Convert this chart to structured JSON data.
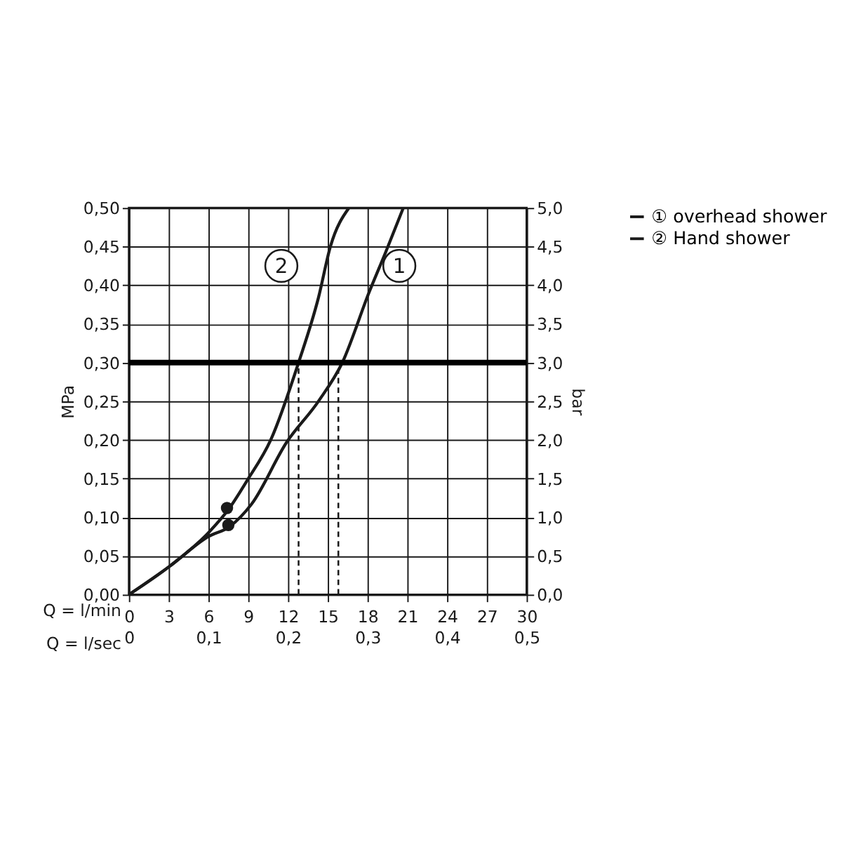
{
  "chart_data": {
    "type": "line",
    "xlabel": "Q = l/min",
    "ylabel": "MPa",
    "y2label": "bar",
    "x2label": "Q = l/sec",
    "xlim": [
      0,
      30
    ],
    "xticks": [
      0,
      3,
      6,
      9,
      12,
      15,
      18,
      21,
      24,
      27,
      30
    ],
    "ylim": [
      0,
      0.5
    ],
    "yticks": [
      {
        "value": 0,
        "label": "0,00"
      },
      {
        "value": 0.05,
        "label": "0,05"
      },
      {
        "value": 0.1,
        "label": "0,10"
      },
      {
        "value": 0.15,
        "label": "0,15"
      },
      {
        "value": 0.2,
        "label": "0,20"
      },
      {
        "value": 0.25,
        "label": "0,25"
      },
      {
        "value": 0.3,
        "label": "0,30"
      },
      {
        "value": 0.35,
        "label": "0,35"
      },
      {
        "value": 0.4,
        "label": "0,40"
      },
      {
        "value": 0.45,
        "label": "0,45"
      },
      {
        "value": 0.5,
        "label": "0,50"
      }
    ],
    "y2lim": [
      0,
      5
    ],
    "y2ticks": [
      {
        "value": 0,
        "label": "0,0"
      },
      {
        "value": 0.5,
        "label": "0,5"
      },
      {
        "value": 1,
        "label": "1,0"
      },
      {
        "value": 1.5,
        "label": "1,5"
      },
      {
        "value": 2,
        "label": "2,0"
      },
      {
        "value": 2.5,
        "label": "2,5"
      },
      {
        "value": 3,
        "label": "3,0"
      },
      {
        "value": 3.5,
        "label": "3,5"
      },
      {
        "value": 4,
        "label": "4,0"
      },
      {
        "value": 4.5,
        "label": "4,5"
      },
      {
        "value": 5,
        "label": "5,0"
      }
    ],
    "x2lim": [
      0,
      0.5
    ],
    "x2ticks": [
      0,
      {
        "value": 0.1,
        "label": "0,1"
      },
      {
        "value": 0.2,
        "label": "0,2"
      },
      {
        "value": 0.3,
        "label": "0,3"
      },
      {
        "value": 0.4,
        "label": "0,4"
      },
      {
        "value": 0.5,
        "label": "0,5"
      }
    ],
    "grid": true,
    "legend": "right",
    "series": [
      {
        "name": "① overhead shower",
        "color": "#1a1a1a",
        "x": [
          0,
          3.1,
          6,
          7.6,
          9.25,
          11.9,
          14.3,
          16.1,
          18.1,
          19.4,
          20.7
        ],
        "values": [
          0,
          0.037,
          0.075,
          0.088,
          0.117,
          0.197,
          0.25,
          0.3,
          0.39,
          0.444,
          0.5
        ]
      },
      {
        "name": "② Hand shower",
        "color": "#1a1a1a",
        "x": [
          0,
          3.1,
          6,
          7.55,
          8.9,
          10.7,
          12.8,
          14.3,
          15.2,
          16.6
        ],
        "values": [
          0,
          0.037,
          0.08,
          0.111,
          0.147,
          0.2,
          0.3,
          0.384,
          0.45,
          0.5
        ]
      },
      {
        "type": "scatter",
        "color": "#1a1a1a",
        "x": [
          7.4,
          7.5
        ],
        "values": [
          0.112,
          0.09
        ]
      },
      {
        "color": "#1a1a1a",
        "line_style": "dashed",
        "x": [
          12.8,
          12.8
        ],
        "values": [
          0,
          0.3
        ]
      },
      {
        "color": "#1a1a1a",
        "line_style": "dashed",
        "x": [
          15.8,
          15.8
        ],
        "values": [
          0,
          0.3
        ]
      }
    ],
    "ref_lines": [
      {
        "axis": "y",
        "value": 0.3,
        "color": "#000000"
      }
    ],
    "annotations": [
      {
        "text": "2",
        "x": 11.5,
        "y": 0.425
      },
      {
        "text": "1",
        "x": 20.4,
        "y": 0.425
      }
    ]
  }
}
